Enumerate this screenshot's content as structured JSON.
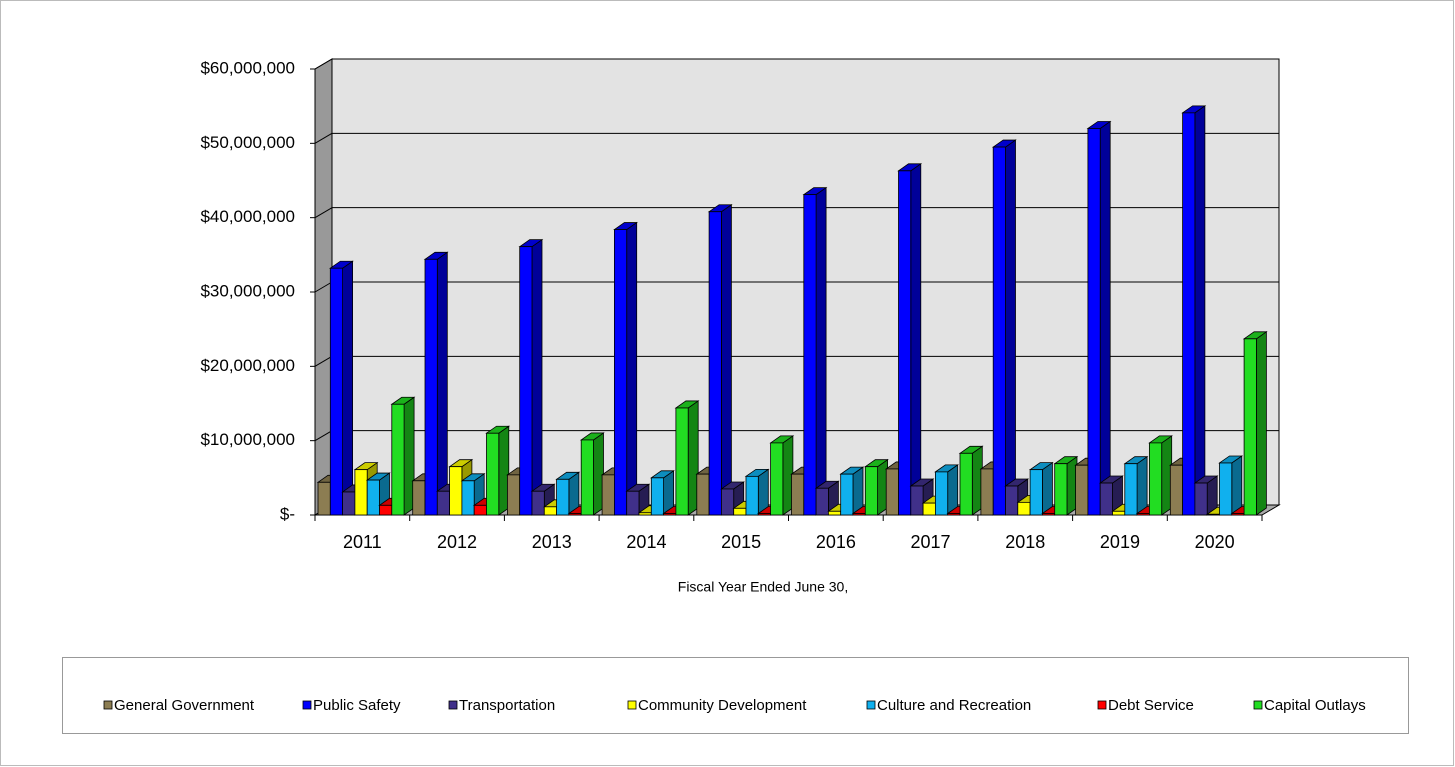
{
  "chart_data": {
    "type": "bar3d",
    "x_label": "Fiscal Year Ended June 30,",
    "categories": [
      "2011",
      "2012",
      "2013",
      "2014",
      "2015",
      "2016",
      "2017",
      "2018",
      "2019",
      "2020"
    ],
    "series": [
      {
        "name": "General Government",
        "color": "#8c7d52",
        "values": [
          4400000,
          4600000,
          5400000,
          5400000,
          5500000,
          5500000,
          6200000,
          6200000,
          6700000,
          6700000
        ]
      },
      {
        "name": "Public Safety",
        "color": "#0000ff",
        "values": [
          33200000,
          34400000,
          36100000,
          38400000,
          40800000,
          43100000,
          46300000,
          49500000,
          52000000,
          54100000
        ]
      },
      {
        "name": "Transportation",
        "color": "#40308a",
        "values": [
          3100000,
          3200000,
          3200000,
          3200000,
          3500000,
          3600000,
          3900000,
          3900000,
          4300000,
          4300000
        ]
      },
      {
        "name": "Community Development",
        "color": "#ffff00",
        "values": [
          6100000,
          6500000,
          1100000,
          300000,
          900000,
          500000,
          1600000,
          1700000,
          500000,
          100000
        ]
      },
      {
        "name": "Culture and Recreation",
        "color": "#10b0ee",
        "values": [
          4700000,
          4600000,
          4800000,
          5000000,
          5200000,
          5500000,
          5800000,
          6100000,
          6900000,
          7000000
        ]
      },
      {
        "name": "Debt Service",
        "color": "#ff0000",
        "values": [
          1300000,
          1300000,
          200000,
          200000,
          200000,
          200000,
          200000,
          200000,
          200000,
          200000
        ]
      },
      {
        "name": "Capital Outlays",
        "color": "#22dd22",
        "values": [
          14900000,
          11000000,
          10100000,
          14400000,
          9700000,
          6500000,
          8300000,
          6900000,
          9700000,
          23700000
        ]
      }
    ],
    "ylim": [
      0,
      60000000
    ],
    "yticks": [
      {
        "value": 0,
        "label": "$-"
      },
      {
        "value": 10000000,
        "label": "$10,000,000"
      },
      {
        "value": 20000000,
        "label": "$20,000,000"
      },
      {
        "value": 30000000,
        "label": "$30,000,000"
      },
      {
        "value": 40000000,
        "label": "$40,000,000"
      },
      {
        "value": 50000000,
        "label": "$50,000,000"
      },
      {
        "value": 60000000,
        "label": "$60,000,000"
      }
    ],
    "grid": true,
    "legend": "bottom"
  }
}
